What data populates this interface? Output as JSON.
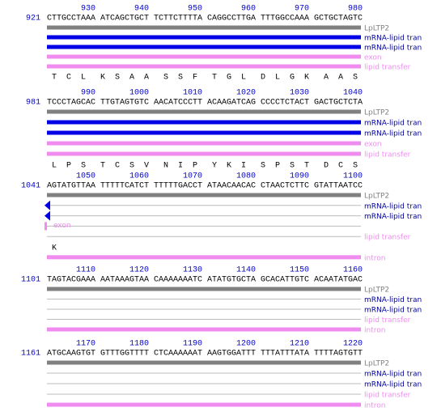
{
  "colors": {
    "gene": "#808080",
    "mrna": "#0000e6",
    "pink": "#f08cf0",
    "gene_label": "#808080",
    "mrna_label": "#000099",
    "pink_label": "#f08cf0",
    "number": "#0000cc"
  },
  "blocks": [
    {
      "start": "921",
      "ruler": [
        "930",
        "940",
        "950",
        "960",
        "970",
        "980"
      ],
      "sequence": [
        "CTTGCCTAAA",
        "ATCAGCTGCT",
        "TCTTCTTTTA",
        "CAGGCCTTGA",
        "TTTGGCCAAA",
        "GCTGCTAGTC"
      ],
      "rows": [
        {
          "label": "LpLTP2",
          "kind": "gene",
          "style": "bar"
        },
        {
          "label": "mRNA-lipid tran",
          "kind": "mrna",
          "style": "bar"
        },
        {
          "label": "mRNA-lipid tran",
          "kind": "mrna",
          "style": "bar"
        },
        {
          "label": "exon",
          "kind": "pink",
          "style": "bar"
        },
        {
          "label": "lipid transfer",
          "kind": "pink",
          "style": "bar"
        },
        {
          "translation": [
            "T",
            "C",
            "L",
            "K",
            "S",
            "A",
            "A",
            "S",
            "S",
            "F",
            "T",
            "G",
            "L",
            "D",
            "L",
            "G",
            "K",
            "A",
            "A",
            "S"
          ]
        }
      ]
    },
    {
      "start": "981",
      "ruler": [
        "990",
        "1000",
        "1010",
        "1020",
        "1030",
        "1040"
      ],
      "sequence": [
        "TCCCTAGCAC",
        "TTGTAGTGTC",
        "AACATCCCTT",
        "ACAAGATCAG",
        "CCCCTCTACT",
        "GACTGCTCTA"
      ],
      "rows": [
        {
          "label": "LpLTP2",
          "kind": "gene",
          "style": "bar"
        },
        {
          "label": "mRNA-lipid tran",
          "kind": "mrna",
          "style": "bar"
        },
        {
          "label": "mRNA-lipid tran",
          "kind": "mrna",
          "style": "bar"
        },
        {
          "label": "exon",
          "kind": "pink",
          "style": "bar"
        },
        {
          "label": "lipid transfer",
          "kind": "pink",
          "style": "bar"
        },
        {
          "translation": [
            "L",
            "P",
            "S",
            "T",
            "C",
            "S",
            "V",
            "N",
            "I",
            "P",
            "Y",
            "K",
            "I",
            "S",
            "P",
            "S",
            "T",
            "D",
            "C",
            "S"
          ]
        }
      ]
    },
    {
      "start": "1041",
      "ruler": [
        "1050",
        "1060",
        "1070",
        "1080",
        "1090",
        "1100"
      ],
      "sequence": [
        "AGTATGTTAA",
        "TTTTTCATCT",
        "TTTTTGACCT",
        "ATAACAACAC",
        "CTAACTCTTC",
        "GTATTAATCC"
      ],
      "rows": [
        {
          "label": "LpLTP2",
          "kind": "gene",
          "style": "bar"
        },
        {
          "label": "mRNA-lipid tran",
          "kind": "mrna",
          "style": "arrow"
        },
        {
          "label": "mRNA-lipid tran",
          "kind": "mrna",
          "style": "arrow"
        },
        {
          "label": "exon",
          "kind": "pink",
          "style": "stub"
        },
        {
          "label": "lipid transfer",
          "kind": "pink",
          "style": "line"
        },
        {
          "translation": [
            "K"
          ]
        },
        {
          "label": "intron",
          "kind": "pink",
          "style": "bar"
        }
      ]
    },
    {
      "start": "1101",
      "ruler": [
        "1110",
        "1120",
        "1130",
        "1140",
        "1150",
        "1160"
      ],
      "sequence": [
        "TAGTACGAAA",
        "AATAAAGTAA",
        "CAAAAAAATC",
        "ATATGTGCTA",
        "GCACATTGTC",
        "ACAATATGAC"
      ],
      "rows": [
        {
          "label": "LpLTP2",
          "kind": "gene",
          "style": "bar"
        },
        {
          "label": "mRNA-lipid tran",
          "kind": "mrna",
          "style": "line"
        },
        {
          "label": "mRNA-lipid tran",
          "kind": "mrna",
          "style": "line"
        },
        {
          "label": "lipid transfer",
          "kind": "pink",
          "style": "line"
        },
        {
          "label": "intron",
          "kind": "pink",
          "style": "bar"
        }
      ]
    },
    {
      "start": "1161",
      "ruler": [
        "1170",
        "1180",
        "1190",
        "1200",
        "1210",
        "1220"
      ],
      "sequence": [
        "ATGCAAGTGT",
        "GTTTGGTTTT",
        "CTCAAAAAAT",
        "AAGTGGATTT",
        "TTTATTTATA",
        "TTTTAGTGTT"
      ],
      "rows": [
        {
          "label": "LpLTP2",
          "kind": "gene",
          "style": "bar"
        },
        {
          "label": "mRNA-lipid tran",
          "kind": "mrna",
          "style": "line"
        },
        {
          "label": "mRNA-lipid tran",
          "kind": "mrna",
          "style": "line"
        },
        {
          "label": "lipid transfer",
          "kind": "pink",
          "style": "line"
        },
        {
          "label": "intron",
          "kind": "pink",
          "style": "bar"
        }
      ]
    }
  ]
}
